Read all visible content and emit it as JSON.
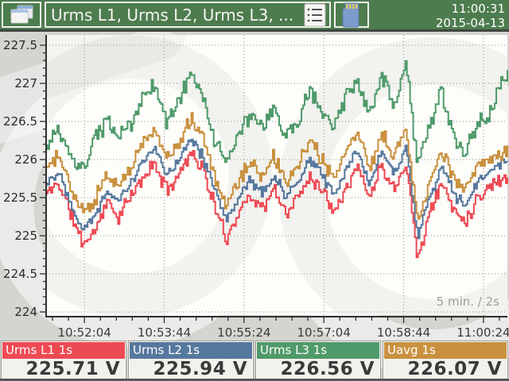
{
  "header": {
    "title": "Urms L1, Urms L2, Urms L3, ...",
    "time": "11:00:31",
    "date": "2015-04-13",
    "bg_color": "#4d7c4e"
  },
  "chart_data": {
    "type": "line",
    "title": "",
    "xlabel": "",
    "ylabel": "",
    "ylim": [
      224,
      227.5
    ],
    "y_major_step": 0.5,
    "y_minor_step": 0.1,
    "grid": "dotted",
    "annotation": "5 min. / 2s",
    "x_axis": {
      "t_span": [
        0,
        578
      ],
      "tick_t": [
        48,
        148,
        248,
        348,
        448,
        548
      ],
      "tick_labels": [
        "10:52:04",
        "10:53:44",
        "10:55:24",
        "10:57:04",
        "10:58:44",
        "11:00:24"
      ],
      "minor_step_s": 20,
      "sample_step_s": 2
    },
    "waypoint_step_s": 15,
    "series": [
      {
        "name": "Urms L1 1s",
        "color": "#ee4a54",
        "jitter": 0.12,
        "seed": 11,
        "values": [
          225.55,
          225.7,
          225.3,
          224.9,
          225.05,
          225.45,
          225.25,
          225.5,
          225.75,
          225.95,
          225.6,
          225.8,
          226.1,
          225.9,
          225.4,
          224.95,
          225.3,
          225.55,
          225.35,
          225.6,
          225.3,
          225.5,
          225.8,
          225.6,
          225.35,
          225.65,
          225.9,
          225.5,
          225.95,
          225.6,
          226.0,
          224.7,
          225.3,
          225.7,
          225.35,
          225.2,
          225.5,
          225.65,
          225.75
        ]
      },
      {
        "name": "Urms L2 1s",
        "color": "#56789e",
        "jitter": 0.09,
        "seed": 22,
        "values": [
          225.7,
          225.85,
          225.45,
          225.1,
          225.25,
          225.6,
          225.45,
          225.7,
          225.95,
          226.15,
          225.8,
          226.0,
          226.3,
          226.05,
          225.6,
          225.2,
          225.5,
          225.75,
          225.55,
          225.8,
          225.5,
          225.7,
          226.0,
          225.8,
          225.55,
          225.85,
          226.1,
          225.7,
          226.1,
          225.8,
          226.2,
          225.0,
          225.5,
          225.9,
          225.55,
          225.4,
          225.7,
          225.85,
          225.95
        ]
      },
      {
        "name": "Urms L3 1s",
        "color": "#4f9a6a",
        "jitter": 0.13,
        "seed": 33,
        "values": [
          226.15,
          226.4,
          226.0,
          225.85,
          226.25,
          226.5,
          226.3,
          226.45,
          226.8,
          227.0,
          226.5,
          226.75,
          227.15,
          226.85,
          226.25,
          226.0,
          226.3,
          226.6,
          226.4,
          226.65,
          226.3,
          226.5,
          226.95,
          226.6,
          226.45,
          226.8,
          227.0,
          226.55,
          227.1,
          226.7,
          227.25,
          225.95,
          226.45,
          226.9,
          226.25,
          226.1,
          226.45,
          226.6,
          227.05
        ]
      },
      {
        "name": "Uavg 1s",
        "color": "#c9913f",
        "jitter": 0.12,
        "seed": 44,
        "values": [
          225.9,
          226.05,
          225.65,
          225.3,
          225.45,
          225.8,
          225.65,
          225.9,
          226.2,
          226.4,
          226.0,
          226.2,
          226.55,
          226.3,
          225.8,
          225.4,
          225.7,
          225.95,
          225.75,
          226.05,
          225.7,
          225.9,
          226.25,
          226.0,
          225.75,
          226.1,
          226.35,
          225.9,
          226.35,
          226.0,
          226.45,
          225.2,
          225.7,
          226.15,
          225.75,
          225.6,
          225.95,
          226.0,
          226.1
        ]
      }
    ],
    "draw_order": [
      0,
      1,
      3,
      2
    ]
  },
  "legend": [
    {
      "label": "Urms L1 1s",
      "value": "225.71 V",
      "color": "#ee4a54"
    },
    {
      "label": "Urms L2 1s",
      "value": "225.94 V",
      "color": "#56789e"
    },
    {
      "label": "Urms L3 1s",
      "value": "226.56 V",
      "color": "#4f9a6a"
    },
    {
      "label": "Uavg 1s",
      "value": "226.07 V",
      "color": "#c9913f"
    }
  ]
}
